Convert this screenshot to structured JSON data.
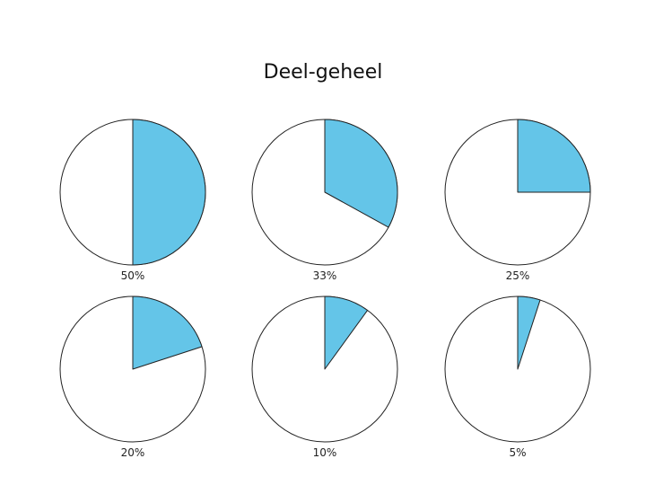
{
  "title": "Deel-geheel",
  "colors": {
    "slice": "#64C5E8",
    "background": "#FFFFFF",
    "outline": "#222222"
  },
  "chart_data": [
    {
      "type": "pie",
      "label": "50%",
      "values": [
        50,
        50
      ]
    },
    {
      "type": "pie",
      "label": "33%",
      "values": [
        33,
        67
      ]
    },
    {
      "type": "pie",
      "label": "25%",
      "values": [
        25,
        75
      ]
    },
    {
      "type": "pie",
      "label": "20%",
      "values": [
        20,
        80
      ]
    },
    {
      "type": "pie",
      "label": "10%",
      "values": [
        10,
        90
      ]
    },
    {
      "type": "pie",
      "label": "5%",
      "values": [
        5,
        95
      ]
    }
  ]
}
